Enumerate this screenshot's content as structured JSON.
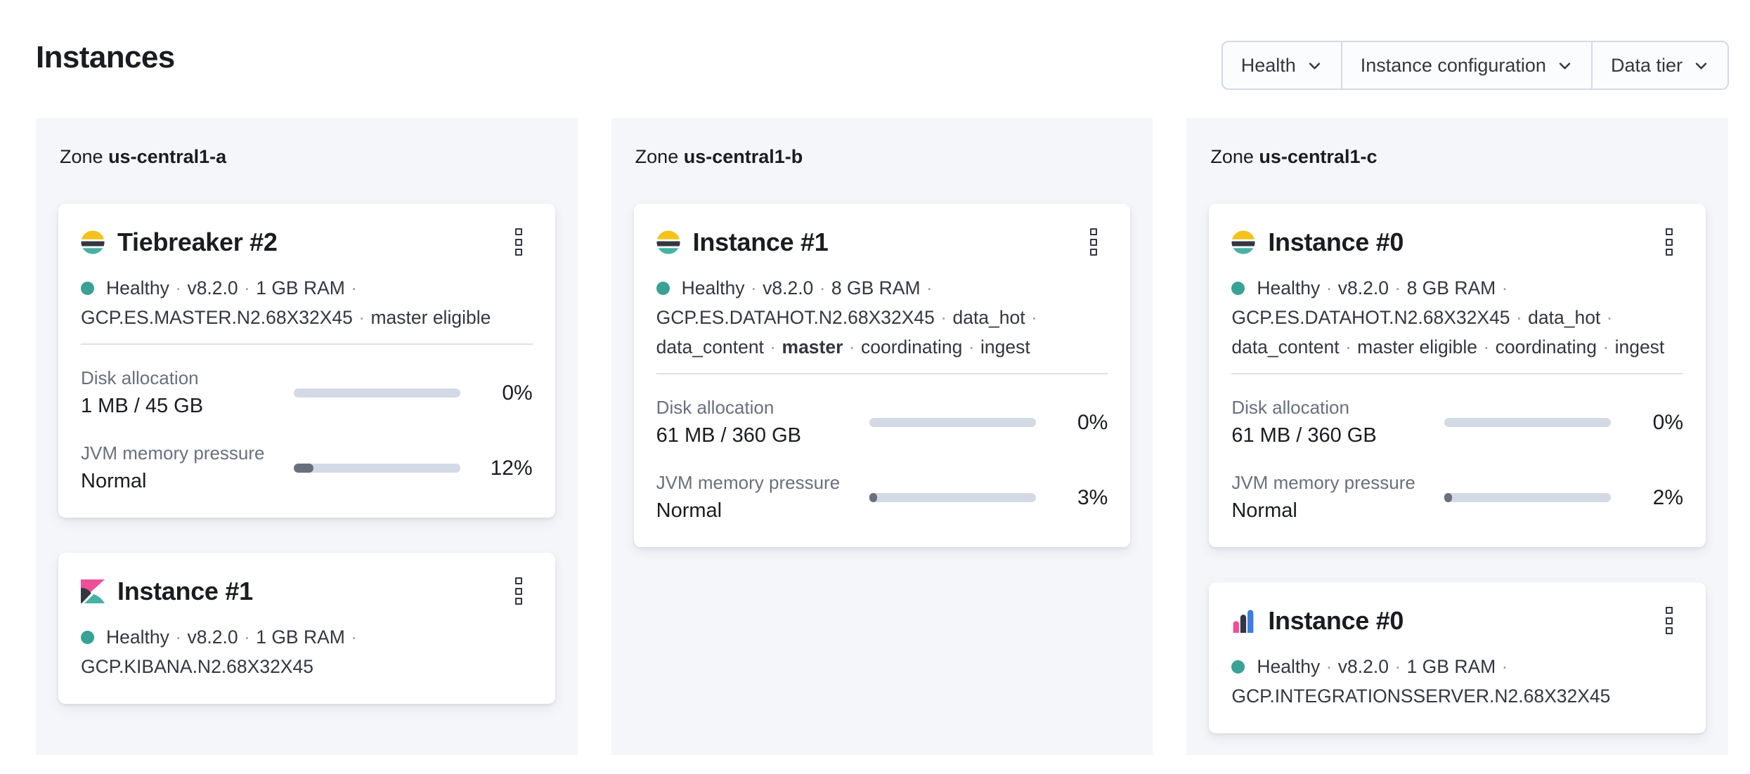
{
  "page": {
    "title": "Instances"
  },
  "filter_bar": {
    "buttons": [
      {
        "label": "Health"
      },
      {
        "label": "Instance configuration"
      },
      {
        "label": "Data tier"
      }
    ]
  },
  "colors": {
    "elastic_yellow": "#f3c31c",
    "elastic_dark": "#343741",
    "elastic_teal": "#45b2a4",
    "pink": "#ef4f98",
    "integrations_blue": "#3c7de2",
    "health_dot": "#38a294",
    "bar_track": "#d3dae6",
    "bar_fill": "#69707d"
  },
  "zones": [
    {
      "label": "Zone",
      "name": "us-central1-a",
      "cards": [
        {
          "logo": "elasticsearch-logo",
          "title": "Tiebreaker #2",
          "meta_lines": [
            [
              {
                "text": "Healthy"
              },
              {
                "text": "·",
                "sep": true
              },
              {
                "text": "v8.2.0"
              },
              {
                "text": "·",
                "sep": true
              },
              {
                "text": "1 GB RAM"
              },
              {
                "text": "·",
                "sep": true
              }
            ],
            [
              {
                "text": "GCP.ES.MASTER.N2.68X32X45"
              },
              {
                "text": "·",
                "sep": true
              },
              {
                "text": "master eligible"
              }
            ]
          ],
          "stats": [
            {
              "label": "Disk allocation",
              "value": "1 MB / 45 GB",
              "percent": 0,
              "percent_label": "0%"
            },
            {
              "label": "JVM memory pressure",
              "value": "Normal",
              "percent": 12,
              "percent_label": "12%"
            }
          ]
        },
        {
          "logo": "kibana-logo",
          "title": "Instance #1",
          "meta_lines": [
            [
              {
                "text": "Healthy"
              },
              {
                "text": "·",
                "sep": true
              },
              {
                "text": "v8.2.0"
              },
              {
                "text": "·",
                "sep": true
              },
              {
                "text": "1 GB RAM"
              },
              {
                "text": "·",
                "sep": true
              }
            ],
            [
              {
                "text": "GCP.KIBANA.N2.68X32X45"
              }
            ]
          ],
          "stats": []
        }
      ]
    },
    {
      "label": "Zone",
      "name": "us-central1-b",
      "cards": [
        {
          "logo": "elasticsearch-logo",
          "title": "Instance #1",
          "meta_lines": [
            [
              {
                "text": "Healthy"
              },
              {
                "text": "·",
                "sep": true
              },
              {
                "text": "v8.2.0"
              },
              {
                "text": "·",
                "sep": true
              },
              {
                "text": "8 GB RAM"
              },
              {
                "text": "·",
                "sep": true
              }
            ],
            [
              {
                "text": "GCP.ES.DATAHOT.N2.68X32X45"
              },
              {
                "text": "·",
                "sep": true
              },
              {
                "text": "data_hot"
              },
              {
                "text": "·",
                "sep": true
              }
            ],
            [
              {
                "text": "data_content"
              },
              {
                "text": "·",
                "sep": true
              },
              {
                "text": "master",
                "bold": true
              },
              {
                "text": "·",
                "sep": true
              },
              {
                "text": "coordinating"
              },
              {
                "text": "·",
                "sep": true
              },
              {
                "text": "ingest"
              }
            ]
          ],
          "stats": [
            {
              "label": "Disk allocation",
              "value": "61 MB / 360 GB",
              "percent": 0,
              "percent_label": "0%"
            },
            {
              "label": "JVM memory pressure",
              "value": "Normal",
              "percent": 3,
              "percent_label": "3%"
            }
          ]
        }
      ]
    },
    {
      "label": "Zone",
      "name": "us-central1-c",
      "cards": [
        {
          "logo": "elasticsearch-logo",
          "title": "Instance #0",
          "meta_lines": [
            [
              {
                "text": "Healthy"
              },
              {
                "text": "·",
                "sep": true
              },
              {
                "text": "v8.2.0"
              },
              {
                "text": "·",
                "sep": true
              },
              {
                "text": "8 GB RAM"
              },
              {
                "text": "·",
                "sep": true
              }
            ],
            [
              {
                "text": "GCP.ES.DATAHOT.N2.68X32X45"
              },
              {
                "text": "·",
                "sep": true
              },
              {
                "text": "data_hot"
              },
              {
                "text": "·",
                "sep": true
              }
            ],
            [
              {
                "text": "data_content"
              },
              {
                "text": "·",
                "sep": true
              },
              {
                "text": "master eligible"
              },
              {
                "text": "·",
                "sep": true
              },
              {
                "text": "coordinating"
              },
              {
                "text": "·",
                "sep": true
              },
              {
                "text": "ingest"
              }
            ]
          ],
          "stats": [
            {
              "label": "Disk allocation",
              "value": "61 MB / 360 GB",
              "percent": 0,
              "percent_label": "0%"
            },
            {
              "label": "JVM memory pressure",
              "value": "Normal",
              "percent": 2,
              "percent_label": "2%"
            }
          ]
        },
        {
          "logo": "integrations-server-logo",
          "title": "Instance #0",
          "meta_lines": [
            [
              {
                "text": "Healthy"
              },
              {
                "text": "·",
                "sep": true
              },
              {
                "text": "v8.2.0"
              },
              {
                "text": "·",
                "sep": true
              },
              {
                "text": "1 GB RAM"
              },
              {
                "text": "·",
                "sep": true
              }
            ],
            [
              {
                "text": "GCP.INTEGRATIONSSERVER.N2.68X32X45"
              }
            ]
          ],
          "stats": []
        }
      ]
    }
  ]
}
